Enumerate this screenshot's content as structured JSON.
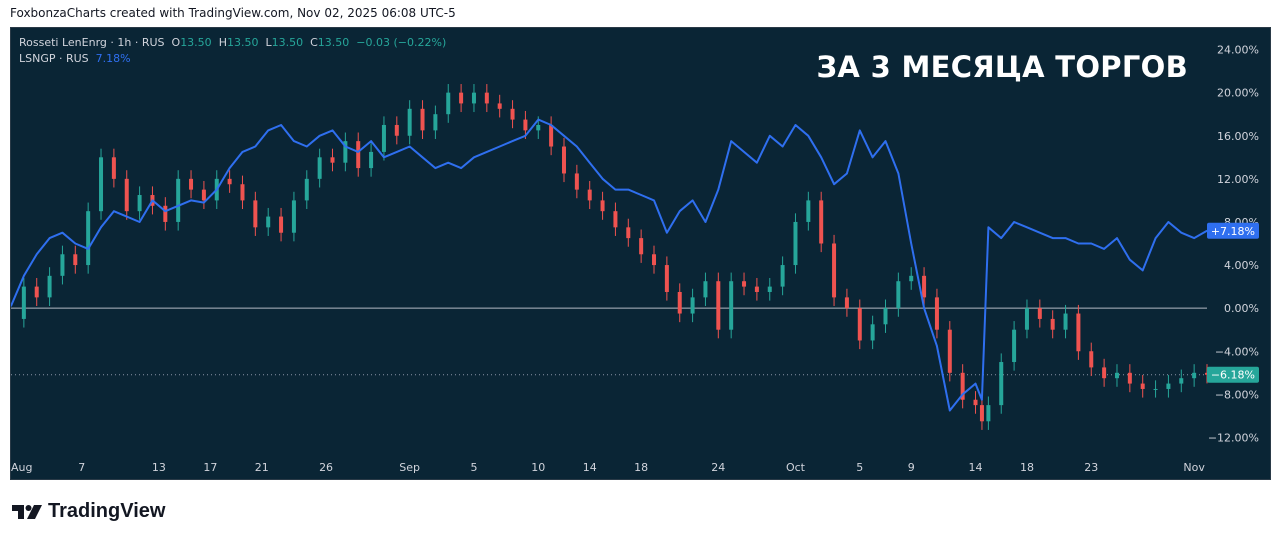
{
  "header": "FoxbonzaCharts created with TradingView.com, Nov 02, 2025 06:08 UTC-5",
  "legend": {
    "main": {
      "name": "Rosseti LenEnrg · 1h · RUS",
      "o_label": "O",
      "o": "13.50",
      "h_label": "H",
      "h": "13.50",
      "l_label": "L",
      "l": "13.50",
      "c_label": "C",
      "c": "13.50",
      "change": "−0.03 (−0.22%)"
    },
    "compare": {
      "name": "LSNGP · RUS",
      "value": "7.18%"
    }
  },
  "overlay_title": "ЗА 3 МЕСЯЦА ТОРГОВ",
  "footer": {
    "brand": "TradingView",
    "logo": "tradingview-logo-icon"
  },
  "colors": {
    "background": "#0a2535",
    "up": "#26a69a",
    "down": "#ef5350",
    "compare_line": "#2f6fef",
    "zero_line": "#d1d4dc",
    "axis_text": "#d1d4dc"
  },
  "chart_data": {
    "type": "line",
    "y_unit": "%",
    "ylim": [
      -14,
      26
    ],
    "y_ticks": [
      "24.00%",
      "20.00%",
      "16.00%",
      "12.00%",
      "8.00%",
      "4.00%",
      "0.00%",
      "−4.00%",
      "−8.00%",
      "−12.00%"
    ],
    "y_tick_values": [
      24,
      20,
      16,
      12,
      8,
      4,
      0,
      -4,
      -8,
      -12
    ],
    "x_labels": [
      "Aug",
      "7",
      "13",
      "17",
      "21",
      "26",
      "Sep",
      "5",
      "10",
      "14",
      "18",
      "24",
      "Oct",
      "5",
      "9",
      "14",
      "18",
      "23",
      "Nov"
    ],
    "x_positions": [
      0,
      5.5,
      11.5,
      15.5,
      19.5,
      24.5,
      31,
      36,
      41,
      45,
      49,
      55,
      61,
      66,
      70,
      75,
      79,
      84,
      92
    ],
    "x_range": [
      0,
      93
    ],
    "grid": false,
    "price_badges": [
      {
        "label": "+7.18%",
        "value": 7.18,
        "series": "LSNGP · RUS"
      },
      {
        "label": "−6.18%",
        "value": -6.18,
        "series": "Rosseti LenEnrg"
      }
    ],
    "series": [
      {
        "name": "LSNGP · RUS",
        "style": "line",
        "x": [
          0,
          1,
          2,
          3,
          4,
          5,
          6,
          7,
          8,
          9,
          10,
          11,
          12,
          13,
          14,
          15,
          16,
          17,
          18,
          19,
          20,
          21,
          22,
          23,
          24,
          25,
          26,
          27,
          28,
          29,
          30,
          31,
          32,
          33,
          34,
          35,
          36,
          37,
          38,
          39,
          40,
          41,
          42,
          43,
          44,
          45,
          46,
          47,
          48,
          49,
          50,
          51,
          52,
          53,
          54,
          55,
          56,
          57,
          58,
          59,
          60,
          61,
          62,
          63,
          64,
          65,
          66,
          67,
          68,
          69,
          70,
          71,
          72,
          73,
          74,
          75,
          75.5,
          76,
          77,
          78,
          79,
          80,
          81,
          82,
          83,
          84,
          85,
          86,
          87,
          88,
          89,
          90,
          91,
          92,
          93
        ],
        "values": [
          0.2,
          3.0,
          5.0,
          6.5,
          7.0,
          6.0,
          5.5,
          7.5,
          9.0,
          8.5,
          8.0,
          10.0,
          9.0,
          9.5,
          10.0,
          9.8,
          11.0,
          13.0,
          14.5,
          15.0,
          16.5,
          17.0,
          15.5,
          15.0,
          16.0,
          16.5,
          15.0,
          14.5,
          15.5,
          14.0,
          14.5,
          15.0,
          14.0,
          13.0,
          13.5,
          13.0,
          14.0,
          14.5,
          15.0,
          15.5,
          16.0,
          17.5,
          17.0,
          16.0,
          15.0,
          13.5,
          12.0,
          11.0,
          11.0,
          10.5,
          10.0,
          7.0,
          9.0,
          10.0,
          8.0,
          11.0,
          15.5,
          14.5,
          13.5,
          16.0,
          15.0,
          17.0,
          16.0,
          14.0,
          11.5,
          12.5,
          16.5,
          14.0,
          15.5,
          12.5,
          6.0,
          0.0,
          -3.5,
          -9.5,
          -8.0,
          -7.0,
          -8.5,
          7.5,
          6.5,
          8.0,
          7.5,
          7.0,
          6.5,
          6.5,
          6.0,
          6.0,
          5.5,
          6.5,
          4.5,
          3.5,
          6.5,
          8.0,
          7.0,
          6.5,
          7.18
        ]
      },
      {
        "name": "Rosseti LenEnrg",
        "style": "candles",
        "x": [
          0,
          1,
          2,
          3,
          4,
          5,
          6,
          7,
          8,
          9,
          10,
          11,
          12,
          13,
          14,
          15,
          16,
          17,
          18,
          19,
          20,
          21,
          22,
          23,
          24,
          25,
          26,
          27,
          28,
          29,
          30,
          31,
          32,
          33,
          34,
          35,
          36,
          37,
          38,
          39,
          40,
          41,
          42,
          43,
          44,
          45,
          46,
          47,
          48,
          49,
          50,
          51,
          52,
          53,
          54,
          55,
          56,
          57,
          58,
          59,
          60,
          61,
          62,
          63,
          64,
          65,
          66,
          67,
          68,
          69,
          70,
          71,
          72,
          73,
          74,
          75,
          75.5,
          76,
          77,
          78,
          79,
          80,
          81,
          82,
          83,
          84,
          85,
          86,
          87,
          88,
          89,
          90,
          91,
          92,
          93
        ],
        "values": [
          -1.0,
          2.0,
          1.0,
          3.0,
          5.0,
          4.0,
          9.0,
          14.0,
          12.0,
          9.0,
          10.5,
          9.5,
          8.0,
          12.0,
          11.0,
          10.0,
          12.0,
          11.5,
          10.0,
          7.5,
          8.5,
          7.0,
          10.0,
          12.0,
          14.0,
          13.5,
          15.5,
          13.0,
          14.5,
          17.0,
          16.0,
          18.5,
          16.5,
          18.0,
          20.0,
          19.0,
          20.0,
          19.0,
          18.5,
          17.5,
          16.5,
          17.0,
          15.0,
          12.5,
          11.0,
          10.0,
          9.0,
          7.5,
          6.5,
          5.0,
          4.0,
          1.5,
          -0.5,
          1.0,
          2.5,
          -2.0,
          2.5,
          2.0,
          1.5,
          2.0,
          4.0,
          8.0,
          10.0,
          6.0,
          1.0,
          0.0,
          -3.0,
          -1.5,
          0.0,
          2.5,
          3.0,
          1.0,
          -2.0,
          -6.0,
          -8.5,
          -9.0,
          -10.5,
          -9.0,
          -5.0,
          -2.0,
          0.0,
          -1.0,
          -2.0,
          -0.5,
          -4.0,
          -5.5,
          -6.5,
          -6.0,
          -7.0,
          -7.5,
          -7.5,
          -7.0,
          -6.5,
          -6.0,
          -6.18
        ]
      }
    ]
  }
}
